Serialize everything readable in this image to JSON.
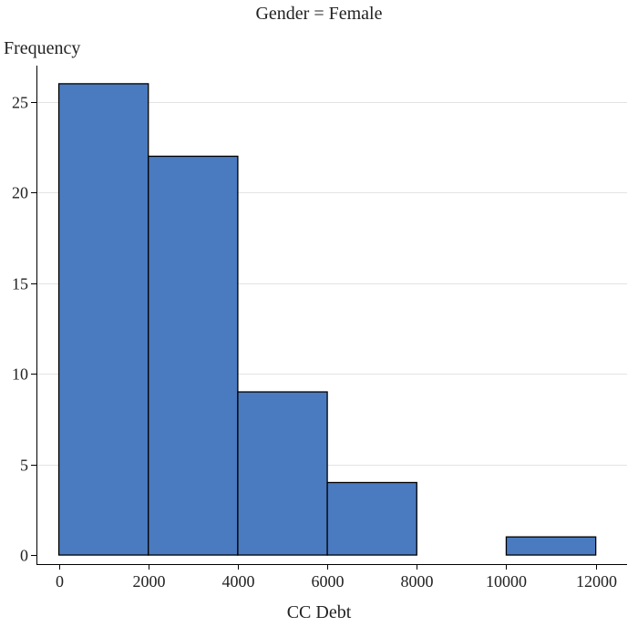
{
  "chart_data": {
    "type": "histogram",
    "title": "Gender = Female",
    "xlabel": "CC Debt",
    "ylabel": "Frequency",
    "bins": [
      {
        "start": 0,
        "end": 2000,
        "count": 26
      },
      {
        "start": 2000,
        "end": 4000,
        "count": 22
      },
      {
        "start": 4000,
        "end": 6000,
        "count": 9
      },
      {
        "start": 6000,
        "end": 8000,
        "count": 4
      },
      {
        "start": 10000,
        "end": 12000,
        "count": 1
      }
    ],
    "xlim": [
      -500,
      12700
    ],
    "ylim": [
      -0.5,
      27
    ],
    "x_ticks": [
      0,
      2000,
      4000,
      6000,
      8000,
      10000,
      12000
    ],
    "x_tick_labels": [
      "0",
      "2000",
      "4000",
      "6000",
      "8000",
      "10000",
      "12000"
    ],
    "y_ticks": [
      0,
      5,
      10,
      15,
      20,
      25
    ],
    "y_tick_labels": [
      "0",
      "5",
      "10",
      "15",
      "20",
      "25"
    ],
    "grid": "horizontal",
    "bar_color": "#4a7abf",
    "bar_edge_color": "#000000",
    "grid_color": "#e3e3e3"
  }
}
